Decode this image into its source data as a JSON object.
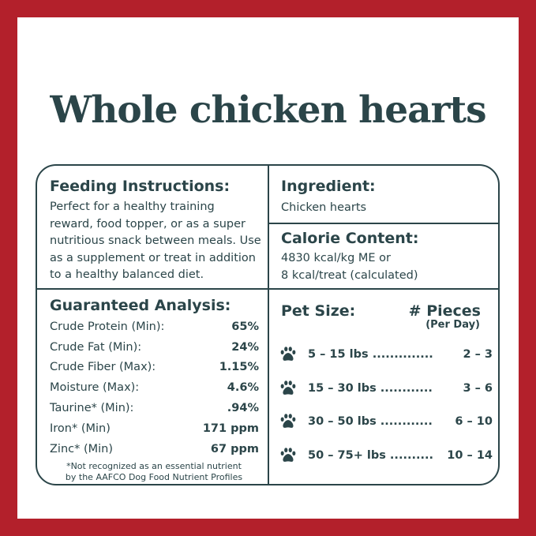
{
  "title": "Whole chicken hearts",
  "colors": {
    "frame": "#b3202b",
    "text": "#2b4549",
    "background": "#ffffff"
  },
  "feeding": {
    "heading": "Feeding Instructions:",
    "lines": [
      "Perfect for a healthy training",
      "reward, food topper, or as a super",
      "nutritious snack between meals. Use",
      "as a supplement or treat in addition",
      "to a healthy balanced diet."
    ]
  },
  "ingredient": {
    "heading": "Ingredient:",
    "text": "Chicken hearts"
  },
  "calorie": {
    "heading": "Calorie Content:",
    "lines": [
      "4830 kcal/kg ME or",
      "8 kcal/treat (calculated)"
    ]
  },
  "analysis": {
    "heading": "Guaranteed Analysis:",
    "rows": [
      {
        "label": "Crude Protein (Min):",
        "value": "65%"
      },
      {
        "label": "Crude Fat (Min):",
        "value": "24%"
      },
      {
        "label": "Crude Fiber (Max):",
        "value": "1.15%"
      },
      {
        "label": "Moisture (Max):",
        "value": "4.6%"
      },
      {
        "label": "Taurine* (Min):",
        "value": ".94%"
      },
      {
        "label": "Iron* (Min)",
        "value": "171 ppm"
      },
      {
        "label": "Zinc* (Min)",
        "value": "67 ppm"
      }
    ],
    "note": [
      "*Not recognized as an essential nutrient",
      "by the AAFCO Dog Food Nutrient Profiles"
    ]
  },
  "pet_size": {
    "heading": "Pet Size:",
    "pieces_heading": "# Pieces",
    "pieces_sub": "(Per Day)",
    "icon": "paw-icon",
    "rows": [
      {
        "range": "5 – 15 lbs ..............",
        "pieces": "2 – 3"
      },
      {
        "range": "15 – 30 lbs ............",
        "pieces": "3 – 6"
      },
      {
        "range": "30 – 50 lbs ............",
        "pieces": "6 – 10"
      },
      {
        "range": "50 – 75+ lbs ..........",
        "pieces": "10 – 14"
      }
    ]
  }
}
